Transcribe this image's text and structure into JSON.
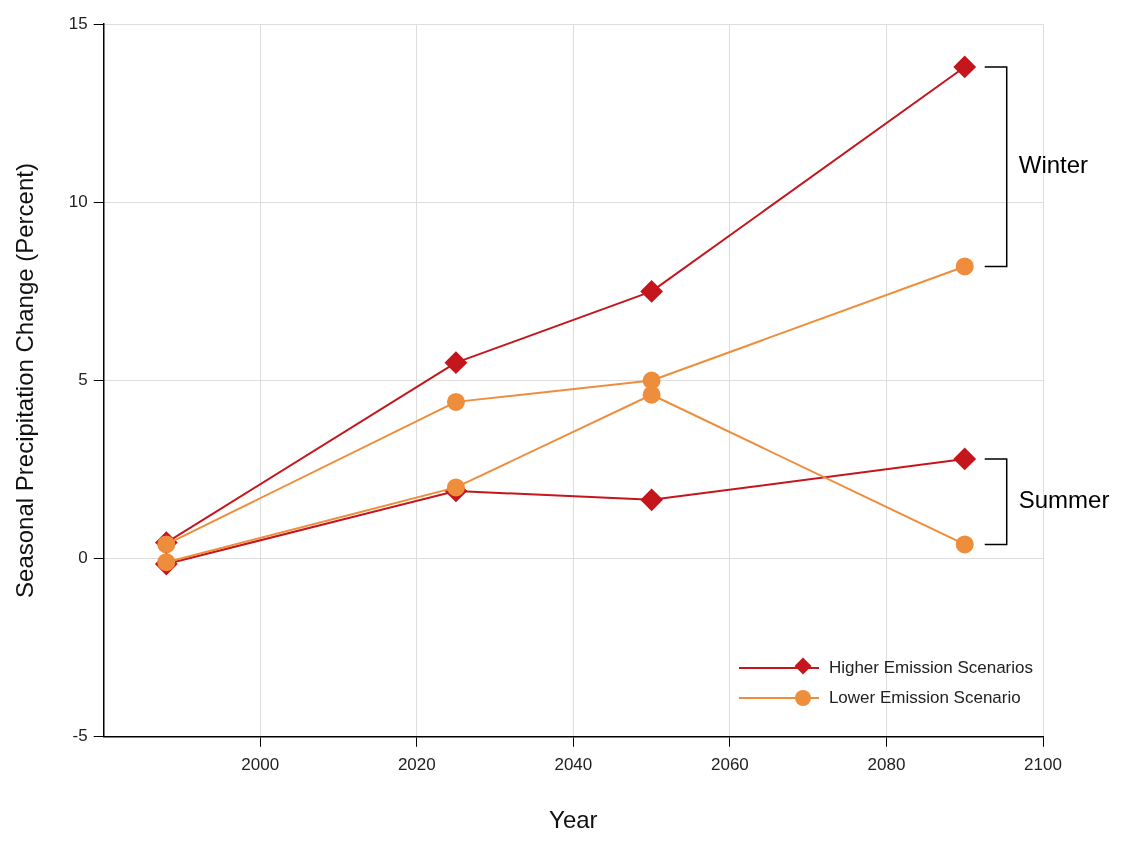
{
  "chart_data": {
    "type": "line",
    "xlabel": "Year",
    "ylabel": "Seasonal Precipitation Change (Percent)",
    "x": [
      1988,
      2025,
      2050,
      2090
    ],
    "series": [
      {
        "name": "Higher Emission Scenarios",
        "color": "#c4161c",
        "marker": "diamond",
        "values": [
          0.45,
          5.5,
          7.5,
          13.8
        ]
      },
      {
        "name": "Lower Emission Scenario",
        "color": "#ee8d3c",
        "marker": "circle",
        "values": [
          0.4,
          4.4,
          5.0,
          8.2
        ]
      },
      {
        "color": "#c4161c",
        "marker": "diamond",
        "values": [
          -0.15,
          1.9,
          1.65,
          2.8
        ]
      },
      {
        "color": "#ee8d3c",
        "marker": "circle",
        "values": [
          -0.1,
          2.0,
          4.6,
          0.4
        ]
      }
    ],
    "xlim": [
      1980,
      2100
    ],
    "xticks": [
      2000,
      2020,
      2040,
      2060,
      2080,
      2100
    ],
    "ylim": [
      -5,
      15
    ],
    "yticks": [
      -5,
      0,
      5,
      10,
      15
    ],
    "grid": true,
    "legend": "bottom right",
    "annotations": [
      "Winter",
      "Summer"
    ]
  }
}
